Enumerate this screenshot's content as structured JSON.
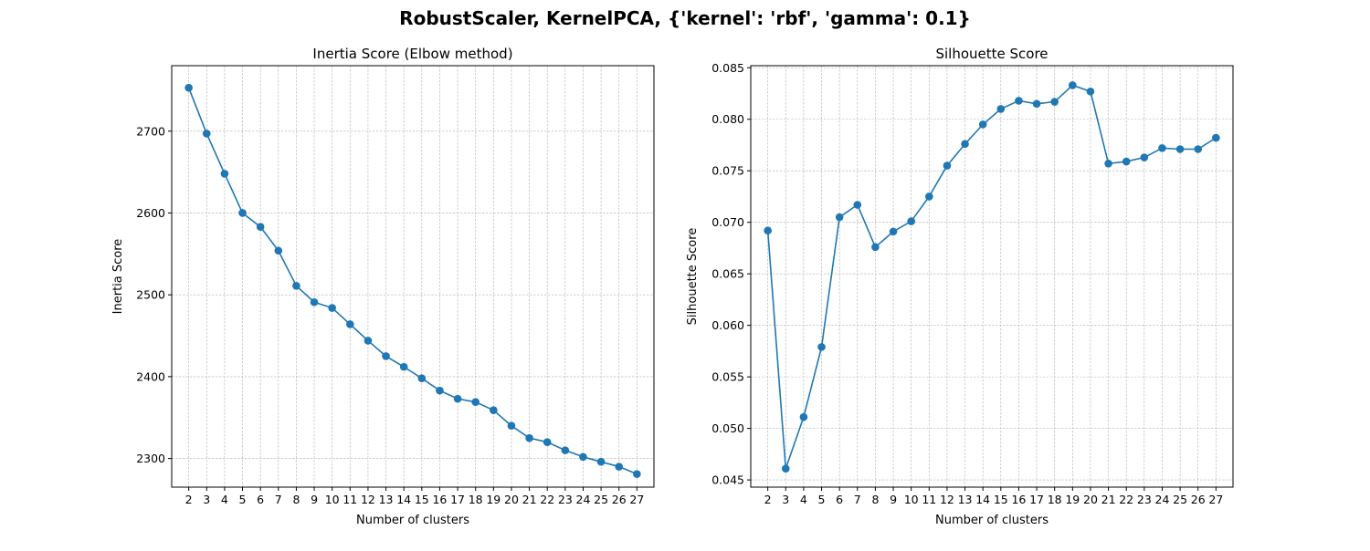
{
  "figure": {
    "title": "RobustScaler, KernelPCA, {'kernel': 'rbf', 'gamma': 0.1}"
  },
  "colors": {
    "series": "#1f77b4",
    "grid": "#b0b0b0",
    "axis": "#000000"
  },
  "chart_data": [
    {
      "type": "line",
      "title": "Inertia Score (Elbow method)",
      "xlabel": "Number of clusters",
      "ylabel": "Inertia Score",
      "x": [
        2,
        3,
        4,
        5,
        6,
        7,
        8,
        9,
        10,
        11,
        12,
        13,
        14,
        15,
        16,
        17,
        18,
        19,
        20,
        21,
        22,
        23,
        24,
        25,
        26,
        27
      ],
      "series": [
        {
          "values": [
            2753,
            2697,
            2648,
            2600,
            2583,
            2554,
            2511,
            2491,
            2484,
            2464,
            2444,
            2425,
            2412,
            2398,
            2383,
            2373,
            2369,
            2359,
            2340,
            2325,
            2320,
            2310,
            2302,
            2296,
            2290,
            2281
          ]
        }
      ],
      "yticks": [
        2300,
        2400,
        2500,
        2600,
        2700
      ],
      "ylim": [
        2265,
        2780
      ],
      "xlim": [
        1.05,
        27.95
      ],
      "grid": true,
      "marker": "circle"
    },
    {
      "type": "line",
      "title": "Silhouette Score",
      "xlabel": "Number of clusters",
      "ylabel": "Silhouette Score",
      "x": [
        2,
        3,
        4,
        5,
        6,
        7,
        8,
        9,
        10,
        11,
        12,
        13,
        14,
        15,
        16,
        17,
        18,
        19,
        20,
        21,
        22,
        23,
        24,
        25,
        26,
        27
      ],
      "series": [
        {
          "values": [
            0.0692,
            0.0461,
            0.0511,
            0.0579,
            0.0705,
            0.0717,
            0.0676,
            0.0691,
            0.0701,
            0.0725,
            0.0755,
            0.0776,
            0.0795,
            0.081,
            0.0818,
            0.0815,
            0.0817,
            0.0833,
            0.0827,
            0.0757,
            0.0759,
            0.0763,
            0.0772,
            0.0771,
            0.0771,
            0.0782
          ]
        }
      ],
      "yticks": [
        0.045,
        0.05,
        0.055,
        0.06,
        0.065,
        0.07,
        0.075,
        0.08,
        0.085
      ],
      "yticklabels": [
        "0.045",
        "0.050",
        "0.055",
        "0.060",
        "0.065",
        "0.070",
        "0.075",
        "0.080",
        "0.085"
      ],
      "ylim": [
        0.0443,
        0.0852
      ],
      "xlim": [
        1.05,
        27.95
      ],
      "grid": true,
      "marker": "circle"
    }
  ]
}
